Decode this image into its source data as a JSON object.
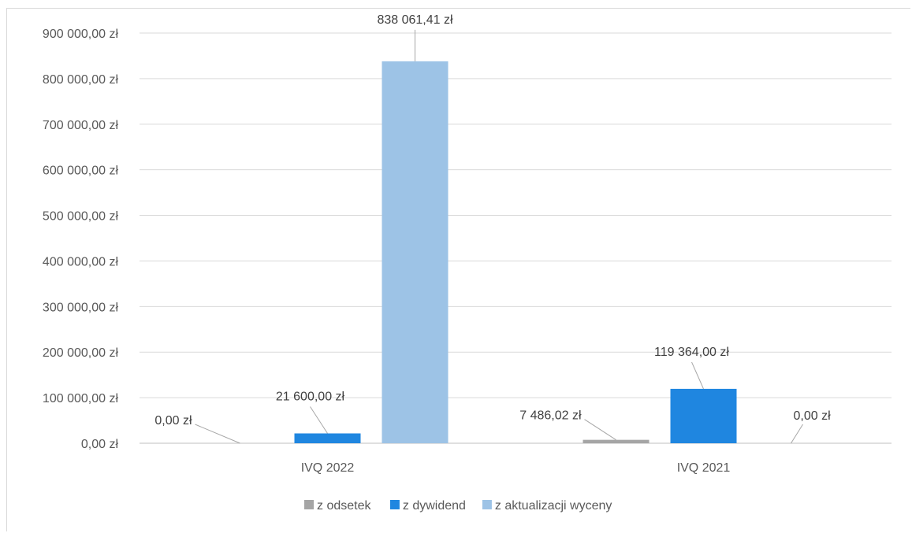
{
  "chart_data": {
    "type": "bar",
    "categories": [
      "IVQ 2022",
      "IVQ 2021"
    ],
    "series": [
      {
        "name": "z odsetek",
        "color": "#a5a5a5",
        "values": [
          0,
          7486.02
        ],
        "labels": [
          "0,00 zł",
          "7 486,02 zł"
        ]
      },
      {
        "name": "z dywidend",
        "color": "#1f86e0",
        "values": [
          21600,
          119364
        ],
        "labels": [
          "21 600,00 zł",
          "119 364,00 zł"
        ]
      },
      {
        "name": "z aktualizacji wyceny",
        "color": "#9dc3e6",
        "values": [
          838061.41,
          0
        ],
        "labels": [
          "838 061,41 zł",
          "0,00 zł"
        ]
      }
    ],
    "ylim": [
      0,
      900000
    ],
    "yticks": [
      {
        "value": 0,
        "label": "0,00 zł"
      },
      {
        "value": 100000,
        "label": "100 000,00 zł"
      },
      {
        "value": 200000,
        "label": "200 000,00 zł"
      },
      {
        "value": 300000,
        "label": "300 000,00 zł"
      },
      {
        "value": 400000,
        "label": "400 000,00 zł"
      },
      {
        "value": 500000,
        "label": "500 000,00 zł"
      },
      {
        "value": 600000,
        "label": "600 000,00 zł"
      },
      {
        "value": 700000,
        "label": "700 000,00 zł"
      },
      {
        "value": 800000,
        "label": "800 000,00 zł"
      },
      {
        "value": 900000,
        "label": "900 000,00 zł"
      }
    ],
    "grid": true,
    "legend_position": "bottom"
  }
}
